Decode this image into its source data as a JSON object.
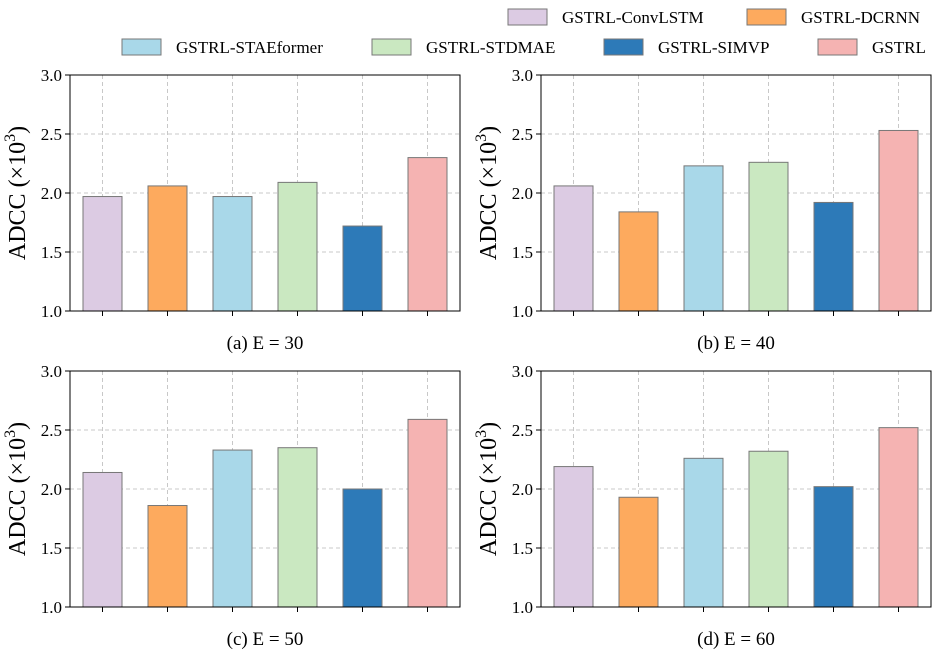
{
  "legend": {
    "items": [
      {
        "name": "GSTRL-ConvLSTM",
        "color": "#dccbe3"
      },
      {
        "name": "GSTRL-DCRNN",
        "color": "#fdaa5e"
      },
      {
        "name": "GSTRL-STAEformer",
        "color": "#a9d8e9"
      },
      {
        "name": "GSTRL-STDMAE",
        "color": "#cae8c1"
      },
      {
        "name": "GSTRL-SIMVP",
        "color": "#2d7ab8"
      },
      {
        "name": "GSTRL",
        "color": "#f5b3b2"
      }
    ]
  },
  "chart_data": [
    {
      "type": "bar",
      "title": "(a) E = 30",
      "ylabel": "ADCC (×10",
      "ylabel_exp": "3",
      "ylabel_close": ")",
      "ylim": [
        1.0,
        3.0
      ],
      "yticks": [
        "1.0",
        "1.5",
        "2.0",
        "2.5",
        "3.0"
      ],
      "grid": true,
      "categories": [
        "GSTRL-ConvLSTM",
        "GSTRL-DCRNN",
        "GSTRL-STAEformer",
        "GSTRL-STDMAE",
        "GSTRL-SIMVP",
        "GSTRL"
      ],
      "values": [
        1.97,
        2.06,
        1.97,
        2.09,
        1.72,
        2.3
      ]
    },
    {
      "type": "bar",
      "title": "(b) E = 40",
      "ylabel": "ADCC (×10",
      "ylabel_exp": "3",
      "ylabel_close": ")",
      "ylim": [
        1.0,
        3.0
      ],
      "yticks": [
        "1.0",
        "1.5",
        "2.0",
        "2.5",
        "3.0"
      ],
      "grid": true,
      "categories": [
        "GSTRL-ConvLSTM",
        "GSTRL-DCRNN",
        "GSTRL-STAEformer",
        "GSTRL-STDMAE",
        "GSTRL-SIMVP",
        "GSTRL"
      ],
      "values": [
        2.06,
        1.84,
        2.23,
        2.26,
        1.92,
        2.53
      ]
    },
    {
      "type": "bar",
      "title": "(c) E = 50",
      "ylabel": "ADCC (×10",
      "ylabel_exp": "3",
      "ylabel_close": ")",
      "ylim": [
        1.0,
        3.0
      ],
      "yticks": [
        "1.0",
        "1.5",
        "2.0",
        "2.5",
        "3.0"
      ],
      "grid": true,
      "categories": [
        "GSTRL-ConvLSTM",
        "GSTRL-DCRNN",
        "GSTRL-STAEformer",
        "GSTRL-STDMAE",
        "GSTRL-SIMVP",
        "GSTRL"
      ],
      "values": [
        2.14,
        1.86,
        2.33,
        2.35,
        2.0,
        2.59
      ]
    },
    {
      "type": "bar",
      "title": "(d) E = 60",
      "ylabel": "ADCC (×10",
      "ylabel_exp": "3",
      "ylabel_close": ")",
      "ylim": [
        1.0,
        3.0
      ],
      "yticks": [
        "1.0",
        "1.5",
        "2.0",
        "2.5",
        "3.0"
      ],
      "grid": true,
      "categories": [
        "GSTRL-ConvLSTM",
        "GSTRL-DCRNN",
        "GSTRL-STAEformer",
        "GSTRL-STDMAE",
        "GSTRL-SIMVP",
        "GSTRL"
      ],
      "values": [
        2.19,
        1.93,
        2.26,
        2.32,
        2.02,
        2.52
      ]
    }
  ]
}
